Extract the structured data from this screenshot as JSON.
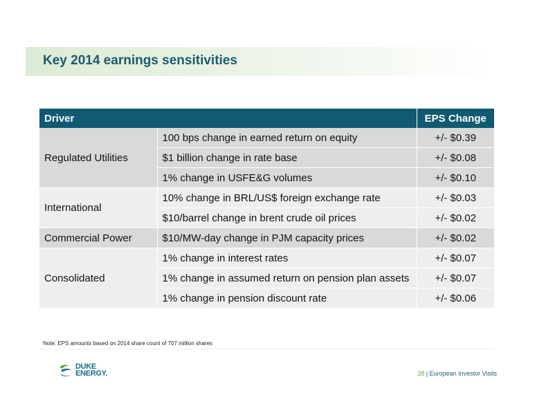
{
  "slide": {
    "title": "Key 2014 earnings sensitivities"
  },
  "table": {
    "headers": {
      "driver": "Driver",
      "eps": "EPS Change"
    },
    "groups": [
      {
        "driver": "Regulated Utilities",
        "rows": [
          {
            "description": "100 bps change in earned return on equity",
            "eps": "+/-  $0.39"
          },
          {
            "description": "$1 billion change in rate base",
            "eps": "+/-  $0.08"
          },
          {
            "description": "1% change in USFE&G volumes",
            "eps": "+/-  $0.10"
          }
        ]
      },
      {
        "driver": "International",
        "rows": [
          {
            "description": "10% change in BRL/US$ foreign exchange rate",
            "eps": "+/-  $0.03"
          },
          {
            "description": "$10/barrel change in brent crude oil prices",
            "eps": "+/-  $0.02"
          }
        ]
      },
      {
        "driver": "Commercial Power",
        "rows": [
          {
            "description": "$10/MW-day change in PJM capacity prices",
            "eps": "+/-  $0.02"
          }
        ]
      },
      {
        "driver": "Consolidated",
        "rows": [
          {
            "description": "1% change in interest rates",
            "eps": "+/-  $0.07"
          },
          {
            "description": "1% change in assumed return on pension plan assets",
            "eps": "+/-  $0.07"
          },
          {
            "description": "1% change in pension discount rate",
            "eps": "+/-  $0.06"
          }
        ]
      }
    ]
  },
  "note": "Note: EPS amounts based on 2014 share count of 707 million shares",
  "logo": {
    "line1": "DUKE",
    "line2": "ENERGY.",
    "icon": "duke-energy-logo-icon"
  },
  "footer": {
    "page": "28",
    "separator": " | ",
    "label": "European Investor Visits"
  },
  "colors": {
    "header_bg": "#105a72",
    "title_text": "#1e5a6e",
    "band_green": "#dcebd5",
    "row_dark": "#d9d9d9",
    "row_light": "#eeeeee",
    "page_number": "#6aa536"
  }
}
